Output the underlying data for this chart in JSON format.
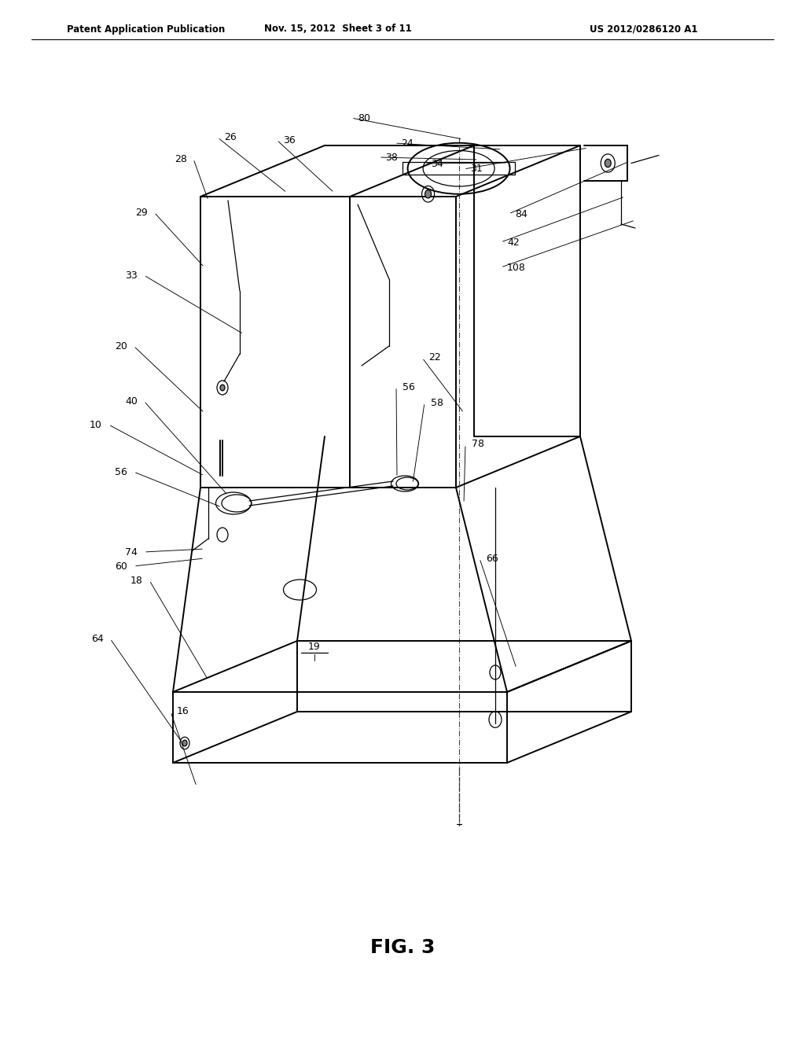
{
  "title": "FIG. 3",
  "header_left": "Patent Application Publication",
  "header_mid": "Nov. 15, 2012  Sheet 3 of 11",
  "header_right": "US 2012/0286120 A1",
  "bg_color": "#ffffff",
  "line_color": "#000000",
  "label_fontsize": 9,
  "header_fontsize": 8.5,
  "title_fontsize": 18
}
